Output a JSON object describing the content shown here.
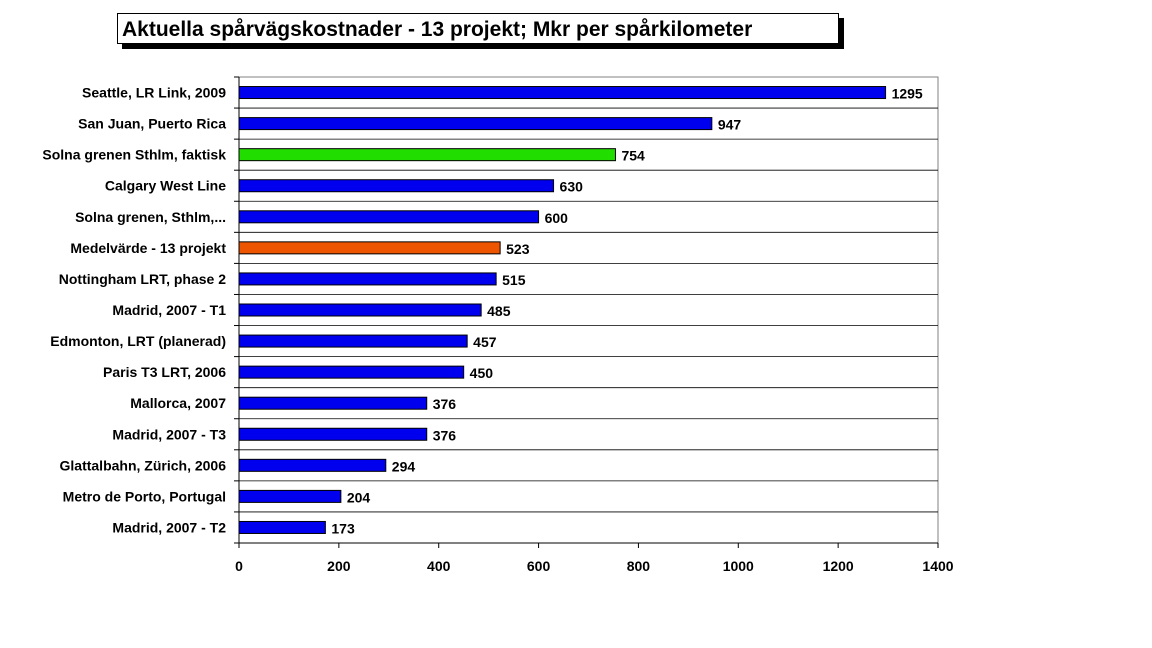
{
  "chart_data": {
    "type": "bar",
    "orientation": "horizontal",
    "title": "Aktuella spårvägskostnader - 13 projekt; Mkr per spårkilometer",
    "xlabel": "",
    "ylabel": "",
    "xlim": [
      0,
      1400
    ],
    "xticks": [
      0,
      200,
      400,
      600,
      800,
      1000,
      1200,
      1400
    ],
    "grid": "horizontal separators between categories",
    "legend": "none",
    "categories": [
      "Seattle, LR Link, 2009",
      "San Juan, Puerto Rica",
      "Solna grenen Sthlm, faktisk",
      "Calgary West Line",
      "Solna grenen, Sthlm,...",
      "Medelvärde - 13 projekt",
      "Nottingham LRT, phase 2",
      "Madrid, 2007 - T1",
      "Edmonton, LRT (planerad)",
      "Paris T3 LRT, 2006",
      "Mallorca, 2007",
      "Madrid, 2007 - T3",
      "Glattalbahn, Zürich, 2006",
      "Metro de Porto, Portugal",
      "Madrid, 2007 - T2"
    ],
    "values": [
      1295,
      947,
      754,
      630,
      600,
      523,
      515,
      485,
      457,
      450,
      376,
      376,
      294,
      204,
      173
    ],
    "data_labels": [
      "1295",
      "947",
      "754",
      "630",
      "600",
      "523",
      "515",
      "485",
      "457",
      "450",
      "376",
      "376",
      "294",
      "204",
      "173"
    ],
    "bar_colors": [
      "#0000ee",
      "#0000ee",
      "#22dd00",
      "#0000ee",
      "#0000ee",
      "#ee5500",
      "#0000ee",
      "#0000ee",
      "#0000ee",
      "#0000ee",
      "#0000ee",
      "#0000ee",
      "#0000ee",
      "#0000ee",
      "#0000ee"
    ]
  }
}
